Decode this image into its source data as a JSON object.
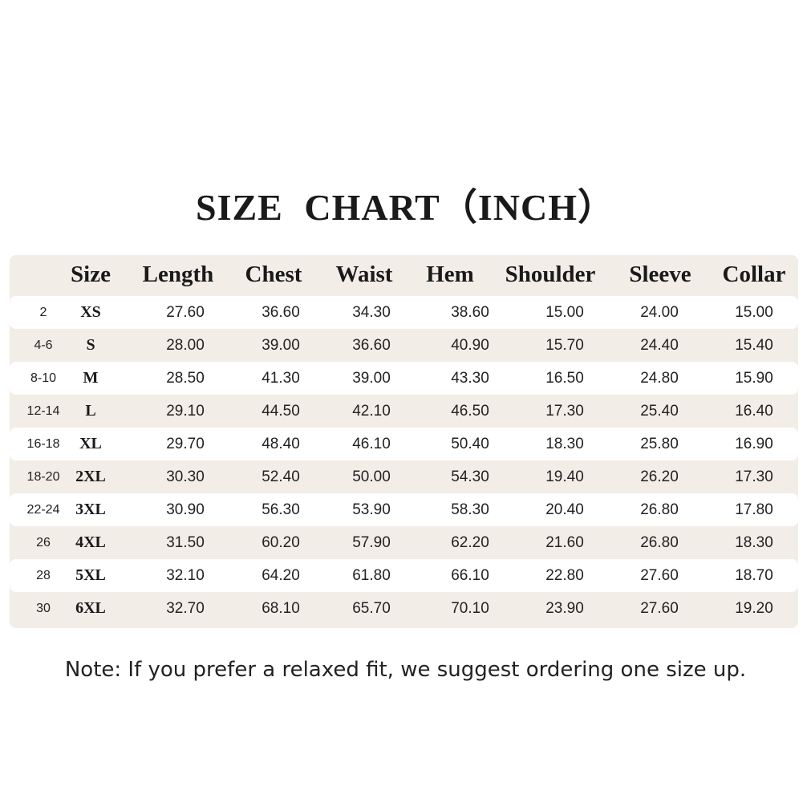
{
  "title": "SIZE CHART（INCH）",
  "table": {
    "headers": [
      "",
      "Size",
      "Length",
      "Chest",
      "Waist",
      "Hem",
      "Shoulder",
      "Sleeve",
      "Collar"
    ],
    "rows": [
      [
        "2",
        "XS",
        "27.60",
        "36.60",
        "34.30",
        "38.60",
        "15.00",
        "24.00",
        "15.00"
      ],
      [
        "4-6",
        "S",
        "28.00",
        "39.00",
        "36.60",
        "40.90",
        "15.70",
        "24.40",
        "15.40"
      ],
      [
        "8-10",
        "M",
        "28.50",
        "41.30",
        "39.00",
        "43.30",
        "16.50",
        "24.80",
        "15.90"
      ],
      [
        "12-14",
        "L",
        "29.10",
        "44.50",
        "42.10",
        "46.50",
        "17.30",
        "25.40",
        "16.40"
      ],
      [
        "16-18",
        "XL",
        "29.70",
        "48.40",
        "46.10",
        "50.40",
        "18.30",
        "25.80",
        "16.90"
      ],
      [
        "18-20",
        "2XL",
        "30.30",
        "52.40",
        "50.00",
        "54.30",
        "19.40",
        "26.20",
        "17.30"
      ],
      [
        "22-24",
        "3XL",
        "30.90",
        "56.30",
        "53.90",
        "58.30",
        "20.40",
        "26.80",
        "17.80"
      ],
      [
        "26",
        "4XL",
        "31.50",
        "60.20",
        "57.90",
        "62.20",
        "21.60",
        "26.80",
        "18.30"
      ],
      [
        "28",
        "5XL",
        "32.10",
        "64.20",
        "61.80",
        "66.10",
        "22.80",
        "27.60",
        "18.70"
      ],
      [
        "30",
        "6XL",
        "32.70",
        "68.10",
        "65.70",
        "70.10",
        "23.90",
        "27.60",
        "19.20"
      ]
    ]
  },
  "note": "Note: If you prefer a relaxed fit, we suggest ordering one size up.",
  "colors": {
    "band": "#f3ede7",
    "text": "#222222"
  }
}
